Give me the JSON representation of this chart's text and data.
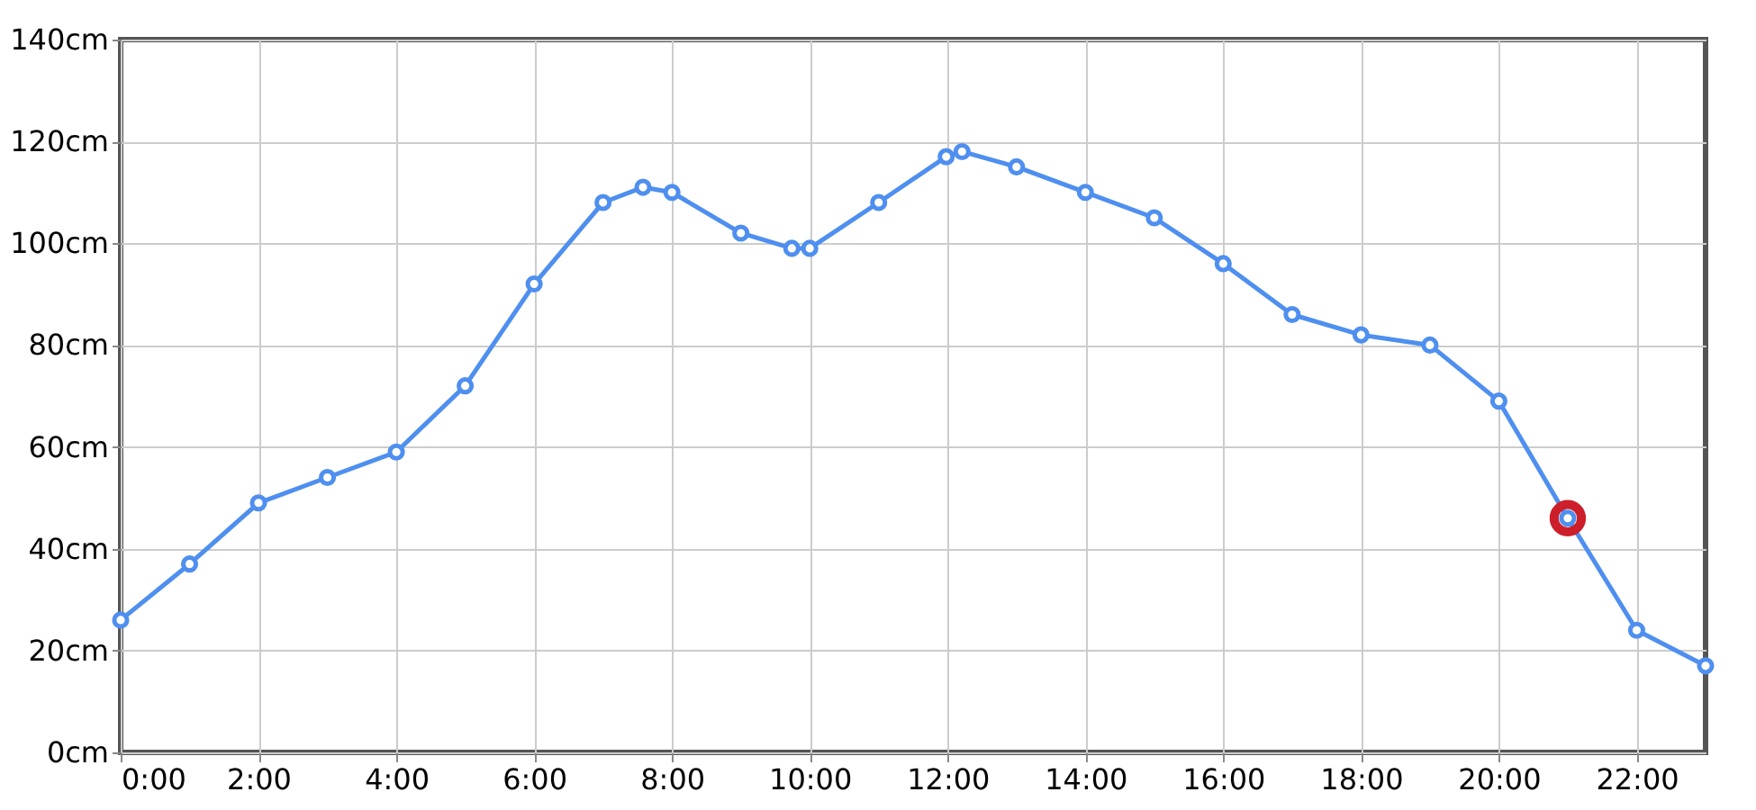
{
  "chart_data": {
    "type": "line",
    "x": [
      0,
      1,
      2,
      3,
      4,
      5,
      6,
      7,
      7.58,
      8,
      9,
      9.74,
      10,
      11,
      11.98,
      12.21,
      13,
      14,
      15,
      16,
      17,
      18,
      19,
      20,
      21,
      22,
      23
    ],
    "series": [
      {
        "color": "#4e8fef",
        "values": [
          26,
          37,
          49,
          54,
          59,
          72,
          92,
          108,
          111,
          110,
          102,
          99,
          99,
          108,
          117,
          118,
          115,
          110,
          105,
          96,
          86,
          82,
          80,
          69,
          46,
          24,
          17
        ]
      },
      {
        "type": "scatter",
        "color": "#cc1f2a",
        "x": [
          21
        ],
        "values": [
          46
        ]
      }
    ],
    "xlim": [
      0,
      23
    ],
    "xticks": [
      {
        "value": 0,
        "label": "0:00"
      },
      {
        "value": 2,
        "label": "2:00"
      },
      {
        "value": 4,
        "label": "4:00"
      },
      {
        "value": 6,
        "label": "6:00"
      },
      {
        "value": 8,
        "label": "8:00"
      },
      {
        "value": 10,
        "label": "10:00"
      },
      {
        "value": 12,
        "label": "12:00"
      },
      {
        "value": 14,
        "label": "14:00"
      },
      {
        "value": 16,
        "label": "16:00"
      },
      {
        "value": 18,
        "label": "18:00"
      },
      {
        "value": 20,
        "label": "20:00"
      },
      {
        "value": 22,
        "label": "22:00"
      }
    ],
    "ylim": [
      0,
      140
    ],
    "yticks": [
      {
        "value": 0,
        "label": "0cm"
      },
      {
        "value": 20,
        "label": "20cm"
      },
      {
        "value": 40,
        "label": "40cm"
      },
      {
        "value": 60,
        "label": "60cm"
      },
      {
        "value": 80,
        "label": "80cm"
      },
      {
        "value": 100,
        "label": "100cm"
      },
      {
        "value": 120,
        "label": "120cm"
      },
      {
        "value": 140,
        "label": "140cm"
      }
    ],
    "grid": true,
    "marker": "circle",
    "line_style": "solid"
  }
}
